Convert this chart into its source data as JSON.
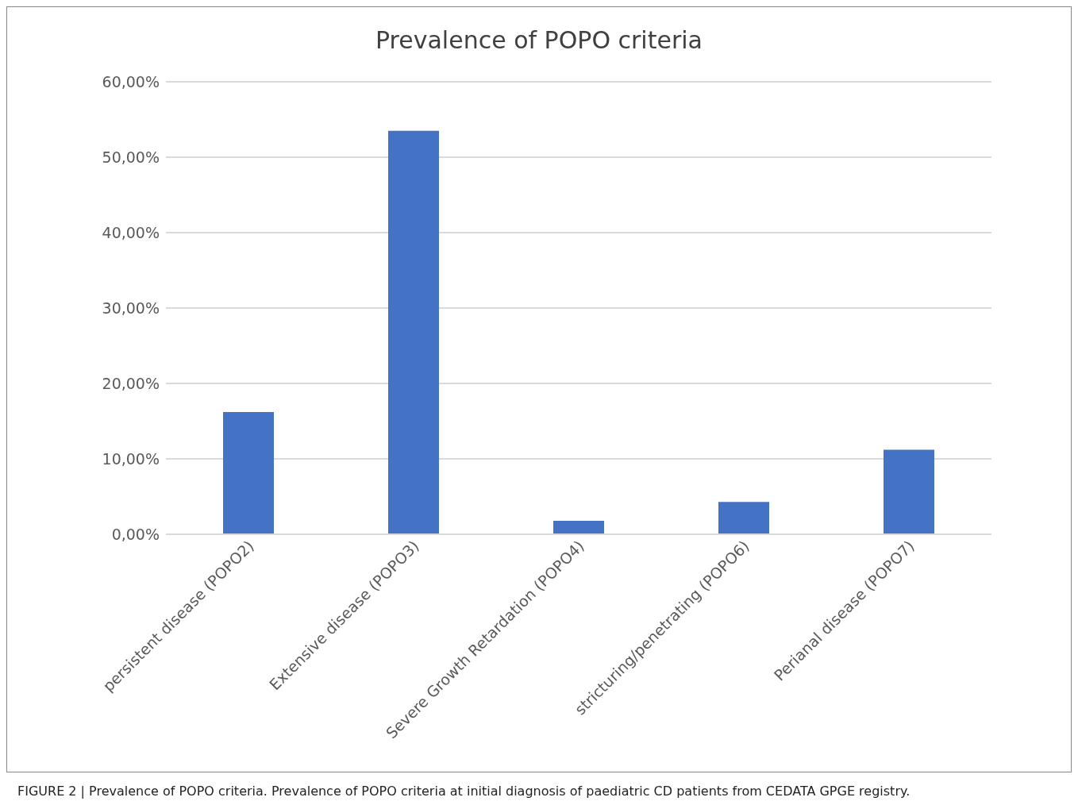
{
  "chart_data": {
    "type": "bar",
    "title": "Prevalence of POPO criteria",
    "categories": [
      "persistent disease (POPO2)",
      "Extensive disease (POPO3)",
      "Severe Growth Retardation (POPO4)",
      "stricturing/penetrating (POPO6)",
      "Perianal disease (POPO7)"
    ],
    "values": [
      16.2,
      53.5,
      1.8,
      4.3,
      11.2
    ],
    "color": "#4472c4",
    "ylim": [
      0,
      60
    ],
    "yticks": [
      {
        "value": 0,
        "label": "0,00%"
      },
      {
        "value": 10,
        "label": "10,00%"
      },
      {
        "value": 20,
        "label": "20,00%"
      },
      {
        "value": 30,
        "label": "30,00%"
      },
      {
        "value": 40,
        "label": "40,00%"
      },
      {
        "value": 50,
        "label": "50,00%"
      },
      {
        "value": 60,
        "label": "60,00%"
      }
    ],
    "grid": "y",
    "annotations": [
      "FIGURE 2 | Prevalence of POPO criteria. Prevalence of POPO criteria at initial diagnosis of paediatric CD patients from CEDATA GPGE registry."
    ]
  }
}
